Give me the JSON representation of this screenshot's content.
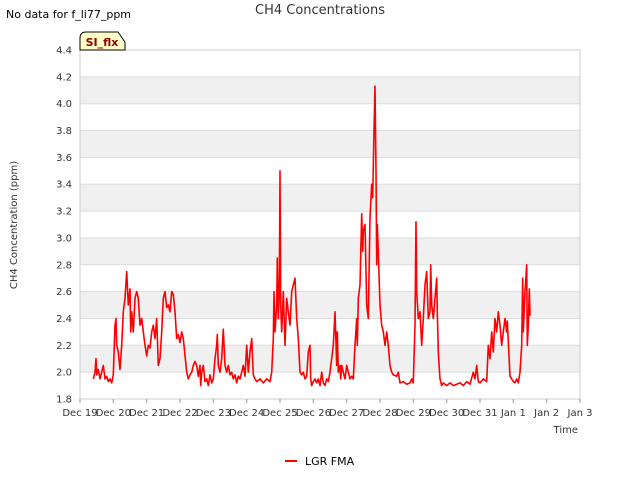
{
  "header": {
    "no_data_text": "No data for f_li77_ppm"
  },
  "badge": {
    "label": "SI_flx"
  },
  "chart_data": {
    "type": "line",
    "title": "CH4 Concentrations",
    "xlabel": "Time",
    "ylabel": "CH4 Concentration (ppm)",
    "ylim": [
      1.8,
      4.4
    ],
    "xlim": [
      0,
      15
    ],
    "y_ticks": [
      1.8,
      2.0,
      2.2,
      2.4,
      2.6,
      2.8,
      3.0,
      3.2,
      3.4,
      3.6,
      3.8,
      4.0,
      4.2,
      4.4
    ],
    "y_tick_labels": [
      "1.8",
      "2.0",
      "2.2",
      "2.4",
      "2.6",
      "2.8",
      "3.0",
      "3.2",
      "3.4",
      "3.6",
      "3.8",
      "4.0",
      "4.2",
      "4.4"
    ],
    "x_ticks": [
      0,
      1,
      2,
      3,
      4,
      5,
      6,
      7,
      8,
      9,
      10,
      11,
      12,
      13,
      14,
      15
    ],
    "x_tick_labels": [
      "Dec 19",
      "Dec 20",
      "Dec 21",
      "Dec 22",
      "Dec 23",
      "Dec 24",
      "Dec 25",
      "Dec 26",
      "Dec 27",
      "Dec 28",
      "Dec 29",
      "Dec 30",
      "Dec 31",
      "Jan 1",
      "Jan 2",
      "Jan 3"
    ],
    "grid": true,
    "legend_position": "bottom-center",
    "series": [
      {
        "name": "LGR FMA",
        "color": "#ff0000",
        "points": [
          [
            0.4,
            1.95
          ],
          [
            0.45,
            2.0
          ],
          [
            0.48,
            2.1
          ],
          [
            0.5,
            1.98
          ],
          [
            0.55,
            2.02
          ],
          [
            0.6,
            1.95
          ],
          [
            0.65,
            2.0
          ],
          [
            0.7,
            2.05
          ],
          [
            0.75,
            1.95
          ],
          [
            0.8,
            1.97
          ],
          [
            0.85,
            1.93
          ],
          [
            0.9,
            1.95
          ],
          [
            0.95,
            1.92
          ],
          [
            1.0,
            1.98
          ],
          [
            1.05,
            2.35
          ],
          [
            1.08,
            2.4
          ],
          [
            1.1,
            2.2
          ],
          [
            1.15,
            2.15
          ],
          [
            1.2,
            2.02
          ],
          [
            1.25,
            2.2
          ],
          [
            1.3,
            2.45
          ],
          [
            1.35,
            2.55
          ],
          [
            1.4,
            2.75
          ],
          [
            1.45,
            2.5
          ],
          [
            1.5,
            2.62
          ],
          [
            1.52,
            2.3
          ],
          [
            1.55,
            2.45
          ],
          [
            1.6,
            2.3
          ],
          [
            1.65,
            2.55
          ],
          [
            1.7,
            2.6
          ],
          [
            1.75,
            2.55
          ],
          [
            1.8,
            2.35
          ],
          [
            1.85,
            2.4
          ],
          [
            1.9,
            2.3
          ],
          [
            1.95,
            2.2
          ],
          [
            2.0,
            2.12
          ],
          [
            2.05,
            2.2
          ],
          [
            2.1,
            2.18
          ],
          [
            2.15,
            2.3
          ],
          [
            2.2,
            2.35
          ],
          [
            2.25,
            2.25
          ],
          [
            2.3,
            2.4
          ],
          [
            2.35,
            2.05
          ],
          [
            2.4,
            2.1
          ],
          [
            2.45,
            2.3
          ],
          [
            2.5,
            2.55
          ],
          [
            2.55,
            2.6
          ],
          [
            2.6,
            2.48
          ],
          [
            2.65,
            2.5
          ],
          [
            2.7,
            2.45
          ],
          [
            2.75,
            2.6
          ],
          [
            2.8,
            2.58
          ],
          [
            2.85,
            2.45
          ],
          [
            2.9,
            2.25
          ],
          [
            2.95,
            2.28
          ],
          [
            3.0,
            2.22
          ],
          [
            3.05,
            2.3
          ],
          [
            3.1,
            2.25
          ],
          [
            3.2,
            2.0
          ],
          [
            3.25,
            1.95
          ],
          [
            3.3,
            1.98
          ],
          [
            3.35,
            2.0
          ],
          [
            3.4,
            2.05
          ],
          [
            3.45,
            2.08
          ],
          [
            3.5,
            2.05
          ],
          [
            3.55,
            1.97
          ],
          [
            3.6,
            2.05
          ],
          [
            3.62,
            1.9
          ],
          [
            3.65,
            2.0
          ],
          [
            3.7,
            2.05
          ],
          [
            3.75,
            1.93
          ],
          [
            3.8,
            1.95
          ],
          [
            3.85,
            1.9
          ],
          [
            3.9,
            1.98
          ],
          [
            3.95,
            1.92
          ],
          [
            4.0,
            1.95
          ],
          [
            4.05,
            2.1
          ],
          [
            4.1,
            2.2
          ],
          [
            4.12,
            2.28
          ],
          [
            4.15,
            2.05
          ],
          [
            4.2,
            2.0
          ],
          [
            4.25,
            2.1
          ],
          [
            4.3,
            2.32
          ],
          [
            4.35,
            2.05
          ],
          [
            4.4,
            2.0
          ],
          [
            4.45,
            2.05
          ],
          [
            4.5,
            1.98
          ],
          [
            4.55,
            2.0
          ],
          [
            4.6,
            1.95
          ],
          [
            4.65,
            1.98
          ],
          [
            4.7,
            1.92
          ],
          [
            4.75,
            1.97
          ],
          [
            4.8,
            1.95
          ],
          [
            4.85,
            2.0
          ],
          [
            4.9,
            2.05
          ],
          [
            4.95,
            1.97
          ],
          [
            5.0,
            2.2
          ],
          [
            5.05,
            2.0
          ],
          [
            5.1,
            2.15
          ],
          [
            5.15,
            2.25
          ],
          [
            5.2,
            1.98
          ],
          [
            5.25,
            1.95
          ],
          [
            5.3,
            1.93
          ],
          [
            5.4,
            1.95
          ],
          [
            5.5,
            1.92
          ],
          [
            5.6,
            1.95
          ],
          [
            5.7,
            1.93
          ],
          [
            5.75,
            2.0
          ],
          [
            5.8,
            2.25
          ],
          [
            5.82,
            2.6
          ],
          [
            5.85,
            2.3
          ],
          [
            5.9,
            2.5
          ],
          [
            5.92,
            2.85
          ],
          [
            5.95,
            2.4
          ],
          [
            5.98,
            2.6
          ],
          [
            6.0,
            3.5
          ],
          [
            6.02,
            2.5
          ],
          [
            6.05,
            2.3
          ],
          [
            6.1,
            2.6
          ],
          [
            6.15,
            2.2
          ],
          [
            6.2,
            2.55
          ],
          [
            6.25,
            2.45
          ],
          [
            6.3,
            2.35
          ],
          [
            6.35,
            2.6
          ],
          [
            6.4,
            2.65
          ],
          [
            6.45,
            2.7
          ],
          [
            6.5,
            2.4
          ],
          [
            6.55,
            2.25
          ],
          [
            6.6,
            2.0
          ],
          [
            6.65,
            1.98
          ],
          [
            6.7,
            2.0
          ],
          [
            6.75,
            1.95
          ],
          [
            6.8,
            1.97
          ],
          [
            6.85,
            2.15
          ],
          [
            6.9,
            2.2
          ],
          [
            6.92,
            1.95
          ],
          [
            6.95,
            1.9
          ],
          [
            7.0,
            1.93
          ],
          [
            7.05,
            1.95
          ],
          [
            7.1,
            1.92
          ],
          [
            7.15,
            1.95
          ],
          [
            7.2,
            1.9
          ],
          [
            7.25,
            2.0
          ],
          [
            7.3,
            1.92
          ],
          [
            7.35,
            1.9
          ],
          [
            7.4,
            1.95
          ],
          [
            7.45,
            1.93
          ],
          [
            7.5,
            2.0
          ],
          [
            7.55,
            2.1
          ],
          [
            7.6,
            2.2
          ],
          [
            7.65,
            2.45
          ],
          [
            7.7,
            2.05
          ],
          [
            7.72,
            2.3
          ],
          [
            7.75,
            2.0
          ],
          [
            7.8,
            2.05
          ],
          [
            7.82,
            1.95
          ],
          [
            7.85,
            2.05
          ],
          [
            7.9,
            2.0
          ],
          [
            7.95,
            1.95
          ],
          [
            8.0,
            2.05
          ],
          [
            8.05,
            2.0
          ],
          [
            8.1,
            1.95
          ],
          [
            8.15,
            1.97
          ],
          [
            8.2,
            1.95
          ],
          [
            8.25,
            2.2
          ],
          [
            8.3,
            2.4
          ],
          [
            8.32,
            2.2
          ],
          [
            8.35,
            2.55
          ],
          [
            8.4,
            2.65
          ],
          [
            8.45,
            3.18
          ],
          [
            8.48,
            2.9
          ],
          [
            8.5,
            3.05
          ],
          [
            8.55,
            3.1
          ],
          [
            8.6,
            2.5
          ],
          [
            8.65,
            2.4
          ],
          [
            8.7,
            3.15
          ],
          [
            8.75,
            3.4
          ],
          [
            8.78,
            3.3
          ],
          [
            8.82,
            3.8
          ],
          [
            8.85,
            4.13
          ],
          [
            8.88,
            3.5
          ],
          [
            8.9,
            2.8
          ],
          [
            8.92,
            3.1
          ],
          [
            8.95,
            2.9
          ],
          [
            9.0,
            2.5
          ],
          [
            9.05,
            2.35
          ],
          [
            9.1,
            2.3
          ],
          [
            9.15,
            2.2
          ],
          [
            9.2,
            2.3
          ],
          [
            9.25,
            2.2
          ],
          [
            9.3,
            2.05
          ],
          [
            9.35,
            2.0
          ],
          [
            9.4,
            1.98
          ],
          [
            9.5,
            1.97
          ],
          [
            9.55,
            2.0
          ],
          [
            9.6,
            1.92
          ],
          [
            9.7,
            1.93
          ],
          [
            9.8,
            1.91
          ],
          [
            9.9,
            1.92
          ],
          [
            9.95,
            1.95
          ],
          [
            10.0,
            1.92
          ],
          [
            10.05,
            2.35
          ],
          [
            10.08,
            3.12
          ],
          [
            10.1,
            2.6
          ],
          [
            10.15,
            2.4
          ],
          [
            10.2,
            2.45
          ],
          [
            10.25,
            2.2
          ],
          [
            10.3,
            2.4
          ],
          [
            10.35,
            2.65
          ],
          [
            10.4,
            2.75
          ],
          [
            10.45,
            2.4
          ],
          [
            10.5,
            2.45
          ],
          [
            10.52,
            2.8
          ],
          [
            10.55,
            2.5
          ],
          [
            10.6,
            2.4
          ],
          [
            10.65,
            2.55
          ],
          [
            10.7,
            2.7
          ],
          [
            10.72,
            2.45
          ],
          [
            10.75,
            2.15
          ],
          [
            10.8,
            1.95
          ],
          [
            10.85,
            1.9
          ],
          [
            10.9,
            1.92
          ],
          [
            11.0,
            1.9
          ],
          [
            11.1,
            1.92
          ],
          [
            11.2,
            1.9
          ],
          [
            11.3,
            1.91
          ],
          [
            11.4,
            1.92
          ],
          [
            11.5,
            1.9
          ],
          [
            11.6,
            1.93
          ],
          [
            11.7,
            1.91
          ],
          [
            11.8,
            2.0
          ],
          [
            11.85,
            1.95
          ],
          [
            11.9,
            2.05
          ],
          [
            11.95,
            1.93
          ],
          [
            12.0,
            1.92
          ],
          [
            12.1,
            1.95
          ],
          [
            12.2,
            1.93
          ],
          [
            12.25,
            2.2
          ],
          [
            12.3,
            2.1
          ],
          [
            12.35,
            2.3
          ],
          [
            12.4,
            2.15
          ],
          [
            12.45,
            2.4
          ],
          [
            12.5,
            2.3
          ],
          [
            12.55,
            2.45
          ],
          [
            12.6,
            2.35
          ],
          [
            12.65,
            2.2
          ],
          [
            12.7,
            2.3
          ],
          [
            12.75,
            2.4
          ],
          [
            12.8,
            2.3
          ],
          [
            12.82,
            2.38
          ],
          [
            12.9,
            1.97
          ],
          [
            12.95,
            1.95
          ],
          [
            13.0,
            1.93
          ],
          [
            13.05,
            1.92
          ],
          [
            13.1,
            1.95
          ],
          [
            13.15,
            1.92
          ],
          [
            13.2,
            2.0
          ],
          [
            13.25,
            2.2
          ],
          [
            13.28,
            2.7
          ],
          [
            13.3,
            2.3
          ],
          [
            13.35,
            2.6
          ],
          [
            13.4,
            2.8
          ],
          [
            13.42,
            2.2
          ],
          [
            13.45,
            2.35
          ],
          [
            13.48,
            2.62
          ],
          [
            13.5,
            2.42
          ]
        ]
      }
    ]
  }
}
